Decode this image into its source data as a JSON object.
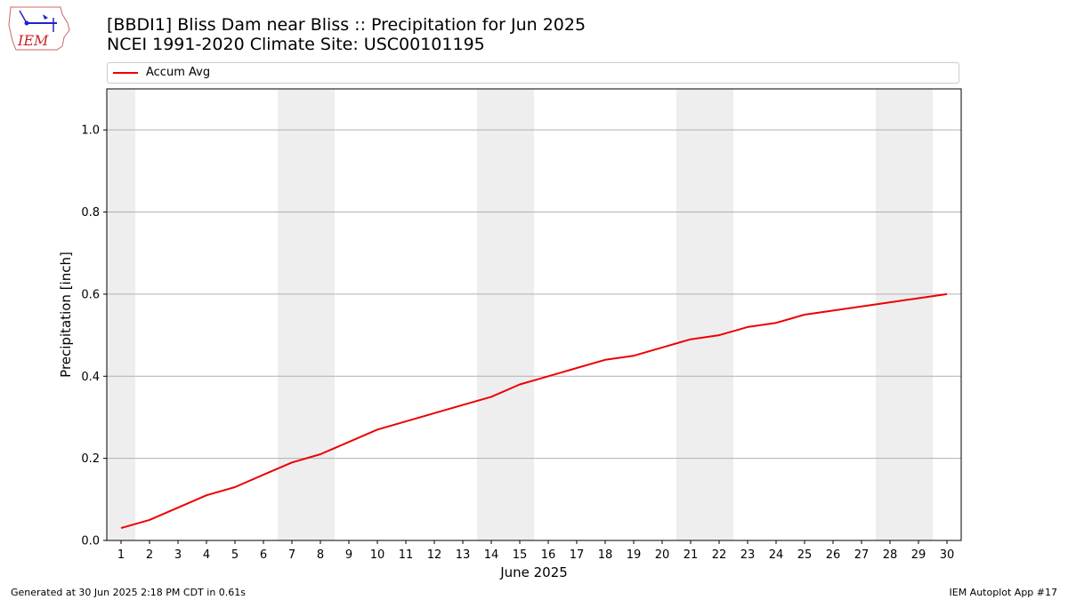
{
  "logo": {
    "text": "IEM",
    "icon": "iem-iowa-logo-icon"
  },
  "header": {
    "title": "[BBDI1] Bliss Dam near Bliss :: Precipitation for Jun 2025",
    "subtitle": "NCEI 1991-2020 Climate Site: USC00101195"
  },
  "footer": {
    "generated": "Generated at 30 Jun 2025 2:18 PM CDT in 0.61s",
    "app": "IEM Autoplot App #17"
  },
  "colors": {
    "line": "#ee0000",
    "weekend_band": "#eeeeee",
    "grid": "#b0b0b0"
  },
  "chart_data": {
    "type": "line",
    "title": "[BBDI1] Bliss Dam near Bliss :: Precipitation for Jun 2025",
    "subtitle": "NCEI 1991-2020 Climate Site: USC00101195",
    "xlabel": "June 2025",
    "ylabel": "Precipitation [inch]",
    "x": [
      1,
      2,
      3,
      4,
      5,
      6,
      7,
      8,
      9,
      10,
      11,
      12,
      13,
      14,
      15,
      16,
      17,
      18,
      19,
      20,
      21,
      22,
      23,
      24,
      25,
      26,
      27,
      28,
      29,
      30
    ],
    "xlim": [
      0.5,
      30.5
    ],
    "ylim": [
      0,
      1.1
    ],
    "yticks": [
      0.0,
      0.2,
      0.4,
      0.6,
      0.8,
      1.0
    ],
    "ytick_labels": [
      "0.0",
      "0.2",
      "0.4",
      "0.6",
      "0.8",
      "1.0"
    ],
    "weekend_days": [
      1,
      7,
      8,
      14,
      15,
      21,
      22,
      28,
      29
    ],
    "grid": "y-major",
    "legend_position": "top",
    "series": [
      {
        "name": "Accum Avg",
        "color": "#ee0000",
        "values": [
          0.03,
          0.05,
          0.08,
          0.11,
          0.13,
          0.16,
          0.19,
          0.21,
          0.24,
          0.27,
          0.29,
          0.31,
          0.33,
          0.35,
          0.38,
          0.4,
          0.42,
          0.44,
          0.45,
          0.47,
          0.49,
          0.5,
          0.52,
          0.53,
          0.55,
          0.56,
          0.57,
          0.58,
          0.59,
          0.6
        ]
      }
    ]
  }
}
